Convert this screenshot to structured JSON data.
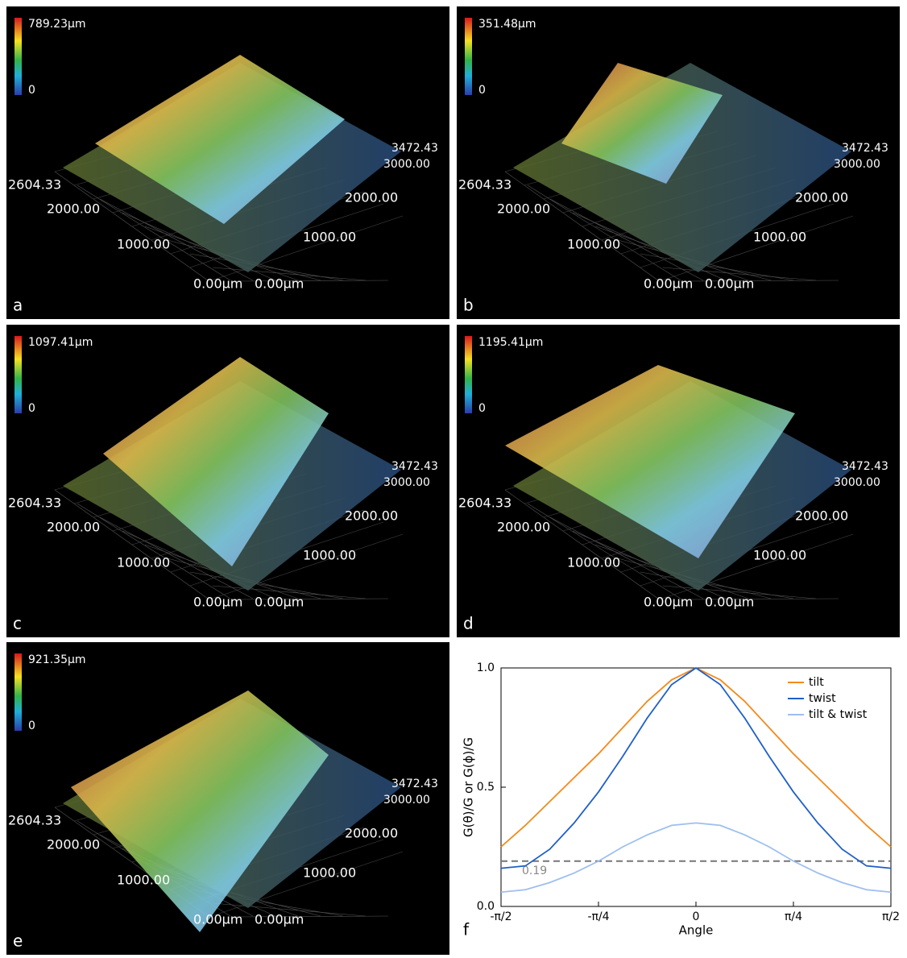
{
  "panels": [
    {
      "label": "a",
      "scale_max": "789.23μm",
      "scale_min": "0",
      "axis_labels": [
        "2604.33",
        "2000.00",
        "1000.00",
        "0.00μm",
        "0.00μm",
        "1000.00",
        "2000.00",
        "3000.00",
        "3472.43"
      ]
    },
    {
      "label": "b",
      "scale_max": "351.48μm",
      "scale_min": "0",
      "axis_labels": [
        "2604.33",
        "2000.00",
        "1000.00",
        "0.00μm",
        "0.00μm",
        "1000.00",
        "2000.00",
        "3000.00",
        "3472.43"
      ]
    },
    {
      "label": "c",
      "scale_max": "1097.41μm",
      "scale_min": "0",
      "axis_labels": [
        "2604.33",
        "2000.00",
        "1000.00",
        "0.00μm",
        "0.00μm",
        "1000.00",
        "2000.00",
        "3000.00",
        "3472.43"
      ]
    },
    {
      "label": "d",
      "scale_max": "1195.41μm",
      "scale_min": "0",
      "axis_labels": [
        "2604.33",
        "2000.00",
        "1000.00",
        "0.00μm",
        "0.00μm",
        "1000.00",
        "2000.00",
        "3000.00",
        "3472.43"
      ]
    },
    {
      "label": "e",
      "scale_max": "921.35μm",
      "scale_min": "0",
      "axis_labels": [
        "2604.33",
        "2000.00",
        "1000.00",
        "0.00μm",
        "0.00μm",
        "1000.00",
        "2000.00",
        "3000.00",
        "3472.43"
      ]
    }
  ],
  "chart_data": {
    "type": "line",
    "panel_label": "f",
    "xlabel": "Angle",
    "ylabel": "G(θ)/G or G(ϕ)/G",
    "x": [
      -1.5708,
      -1.3744,
      -1.1781,
      -0.9817,
      -0.7854,
      -0.589,
      -0.3927,
      -0.1963,
      0,
      0.1963,
      0.3927,
      0.589,
      0.7854,
      0.9817,
      1.1781,
      1.3744,
      1.5708
    ],
    "series": [
      {
        "name": "tilt",
        "color": "#f28a1c",
        "values": [
          0.25,
          0.34,
          0.44,
          0.54,
          0.64,
          0.75,
          0.86,
          0.95,
          1.0,
          0.95,
          0.86,
          0.75,
          0.64,
          0.54,
          0.44,
          0.34,
          0.25
        ]
      },
      {
        "name": "twist",
        "color": "#1f5fc8",
        "values": [
          0.16,
          0.17,
          0.24,
          0.35,
          0.48,
          0.63,
          0.79,
          0.93,
          1.0,
          0.93,
          0.79,
          0.63,
          0.48,
          0.35,
          0.24,
          0.17,
          0.16
        ]
      },
      {
        "name": "tilt & twist",
        "color": "#9dbff0",
        "values": [
          0.06,
          0.07,
          0.1,
          0.14,
          0.19,
          0.25,
          0.3,
          0.34,
          0.35,
          0.34,
          0.3,
          0.25,
          0.19,
          0.14,
          0.1,
          0.07,
          0.06
        ]
      }
    ],
    "reference_line": {
      "value": 0.19,
      "label": "0.19"
    },
    "xlim": [
      -1.5708,
      1.5708
    ],
    "xticks": [
      {
        "value": -1.5708,
        "label": "-π/2"
      },
      {
        "value": -0.7854,
        "label": "-π/4"
      },
      0,
      {
        "value": 0.7854,
        "label": "π/4"
      },
      {
        "value": 1.5708,
        "label": "π/2"
      }
    ],
    "ylim": [
      0,
      1
    ],
    "yticks": [
      {
        "value": 0,
        "label": "0.0"
      },
      {
        "value": 0.5,
        "label": "0.5"
      },
      {
        "value": 1,
        "label": "1.0"
      }
    ],
    "legend": "upper right"
  }
}
